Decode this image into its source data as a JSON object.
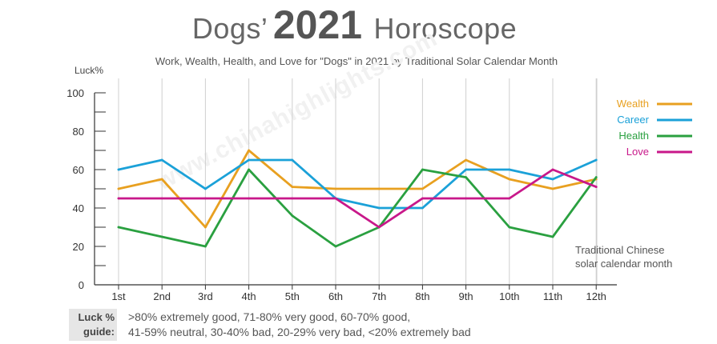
{
  "header": {
    "title_pre": "Dogs’",
    "title_year": "2021",
    "title_post": "Horoscope",
    "subtitle": "Work, Wealth, Health, and Love for \"Dogs\" in 2021 by Traditional Solar Calendar Month"
  },
  "watermark": "www.chinahighlights.com",
  "guide": {
    "label_line1": "Luck %",
    "label_line2": "guide:",
    "line1": ">80% extremely good, 71-80% very good, 60-70% good,",
    "line2": "41-59% neutral, 30-40% bad, 20-29% very bad, <20% extremely bad"
  },
  "chart_data": {
    "type": "line",
    "ylabel": "Luck%",
    "xlabel_line1": "Traditional Chinese",
    "xlabel_line2": "solar calendar month",
    "ylim": [
      0,
      100
    ],
    "yticks": [
      "0",
      "20",
      "40",
      "60",
      "80",
      "100"
    ],
    "grid": "vertical",
    "legend_position": "top-right",
    "categories": [
      "1st",
      "2nd",
      "3rd",
      "4th",
      "5th",
      "6th",
      "7th",
      "8th",
      "9th",
      "10th",
      "11th",
      "12th"
    ],
    "series": [
      {
        "name": "Wealth",
        "color": "#e8a020",
        "values": [
          50,
          55,
          30,
          70,
          51,
          50,
          50,
          50,
          65,
          55,
          50,
          55
        ]
      },
      {
        "name": "Career",
        "color": "#1ba1d8",
        "values": [
          60,
          65,
          50,
          65,
          65,
          45,
          40,
          40,
          60,
          60,
          55,
          65
        ]
      },
      {
        "name": "Health",
        "color": "#2aa040",
        "values": [
          30,
          25,
          20,
          60,
          36,
          20,
          30,
          60,
          56,
          30,
          25,
          56
        ]
      },
      {
        "name": "Love",
        "color": "#c8188a",
        "values": [
          45,
          45,
          45,
          45,
          45,
          45,
          30,
          45,
          45,
          45,
          60,
          51
        ]
      }
    ]
  }
}
